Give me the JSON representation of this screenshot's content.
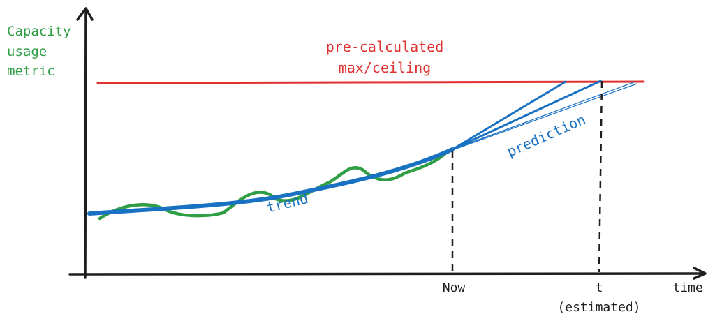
{
  "labels": {
    "y_axis": [
      "Capacity",
      "usage",
      "metric"
    ],
    "ceiling": [
      "pre-calculated",
      "max/ceiling"
    ],
    "trend": "trend",
    "prediction": "prediction",
    "now": "Now",
    "t": "t",
    "estimated": "(estimated)",
    "x_axis": "time"
  },
  "colors": {
    "usage": "#2f9e44",
    "ceiling": "#e03131",
    "trend": "#1971c2",
    "axes": "#1e1e1e"
  }
}
